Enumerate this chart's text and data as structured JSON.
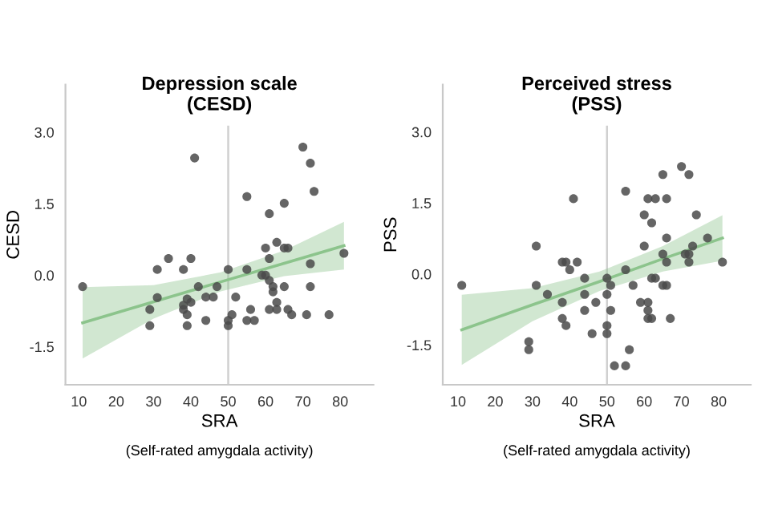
{
  "chart_data": [
    {
      "type": "scatter",
      "title": "Depression scale\n(CESD)",
      "xlabel": "SRA",
      "ylabel": "CESD",
      "annotations": [
        "(Self-rated amygdala activity)"
      ],
      "xlim": [
        6.4,
        88.9
      ],
      "ylim": [
        -2.3,
        4.0
      ],
      "xticks": [
        10,
        20,
        30,
        40,
        50,
        60,
        70,
        80
      ],
      "yticks": [
        {
          "value": -1.5,
          "label": "-1.5"
        },
        {
          "value": 0,
          "label": "0.0"
        },
        {
          "value": 1.5,
          "label": "1.5"
        },
        {
          "value": 3,
          "label": "3.0"
        }
      ],
      "grid": false,
      "legend": false,
      "marker": "circle",
      "ref_lines": [
        {
          "axis": "x",
          "value": 50,
          "color": "#d0d0d0"
        }
      ],
      "series": [
        {
          "type": "scatter",
          "color": "#4a4a4a",
          "x": [
            11,
            41,
            29,
            29,
            31,
            31,
            34,
            38,
            38,
            38,
            39,
            39,
            39,
            40,
            40,
            42,
            44,
            44,
            46,
            47,
            50,
            50,
            50,
            51,
            52,
            55,
            55,
            55,
            56,
            57,
            59,
            60,
            60,
            61,
            61,
            61,
            61,
            62,
            62,
            63,
            63,
            63,
            65,
            65,
            65,
            66,
            66,
            67,
            70,
            71,
            72,
            72,
            72,
            73,
            77,
            81
          ],
          "values": [
            -0.24,
            2.46,
            -0.72,
            -1.06,
            0.12,
            -0.47,
            0.35,
            0.12,
            -0.63,
            -0.72,
            -0.5,
            -0.83,
            -1.06,
            0.35,
            -0.57,
            -0.24,
            -0.46,
            -0.95,
            -0.46,
            -0.24,
            0.12,
            -0.95,
            -1.06,
            -0.83,
            -0.46,
            1.65,
            0.12,
            -0.95,
            -0.72,
            -0.95,
            0.0,
            0.57,
            0.0,
            1.29,
            0.35,
            -0.11,
            -0.72,
            -0.24,
            -0.35,
            -0.72,
            0.69,
            -0.57,
            1.51,
            0.57,
            -0.24,
            0.57,
            -0.72,
            -0.83,
            2.69,
            -0.83,
            2.35,
            0.24,
            -0.24,
            1.76,
            -0.83,
            0.46
          ]
        },
        {
          "type": "line",
          "color": "#8cc48c",
          "marker": "none",
          "line_style": "solid",
          "x": [
            11,
            30,
            48,
            65,
            81
          ],
          "values": [
            -1.0,
            -0.56,
            -0.14,
            0.25,
            0.62
          ],
          "lower": [
            -1.75,
            -0.91,
            -0.34,
            -0.02,
            0.12
          ],
          "upper": [
            -0.25,
            -0.21,
            0.06,
            0.52,
            1.12
          ]
        }
      ]
    },
    {
      "type": "scatter",
      "title": "Perceived stress\n(PSS)",
      "xlabel": "SRA",
      "ylabel": "PSS",
      "annotations": [
        "(Self-rated amygdala activity)"
      ],
      "xlim": [
        5.9,
        88.6
      ],
      "ylim": [
        -2.34,
        4.0
      ],
      "xticks": [
        10,
        20,
        30,
        40,
        50,
        60,
        70,
        80
      ],
      "yticks": [
        {
          "value": -1.5,
          "label": "-1.5"
        },
        {
          "value": 0,
          "label": "0.0"
        },
        {
          "value": 1.5,
          "label": "1.5"
        },
        {
          "value": 3,
          "label": "3.0"
        }
      ],
      "grid": false,
      "legend": false,
      "marker": "circle",
      "ref_lines": [
        {
          "axis": "x",
          "value": 50,
          "color": "#d0d0d0"
        }
      ],
      "series": [
        {
          "type": "scatter",
          "color": "#4a4a4a",
          "x": [
            11,
            29,
            29,
            31,
            31,
            34,
            38,
            38,
            38,
            39,
            39,
            40,
            41,
            42,
            44,
            44,
            44,
            46,
            47,
            50,
            50,
            50,
            50,
            51,
            52,
            51,
            55,
            55,
            55,
            56,
            57,
            59,
            60,
            60,
            61,
            61,
            61,
            61,
            62,
            62,
            62,
            63,
            63,
            65,
            65,
            65,
            66,
            66,
            66,
            66,
            67,
            70,
            71,
            72,
            72,
            72,
            73,
            74,
            77,
            81
          ],
          "values": [
            -0.24,
            -1.43,
            -1.6,
            0.59,
            -0.24,
            -0.43,
            0.25,
            -0.6,
            -0.94,
            0.25,
            -1.09,
            0.09,
            1.59,
            0.25,
            -0.09,
            -0.43,
            -0.77,
            -1.26,
            -0.6,
            -0.09,
            -0.43,
            -1.09,
            -1.26,
            -0.24,
            -1.94,
            -0.77,
            1.75,
            0.09,
            -1.94,
            -1.6,
            -0.24,
            -0.6,
            1.25,
            0.59,
            1.59,
            -0.6,
            -0.77,
            -0.94,
            1.08,
            -0.94,
            -0.09,
            -0.09,
            1.59,
            2.1,
            0.42,
            -0.24,
            1.59,
            0.76,
            0.25,
            -0.24,
            -0.94,
            2.27,
            0.42,
            2.1,
            0.42,
            0.25,
            0.59,
            1.25,
            0.76,
            0.25
          ]
        },
        {
          "type": "line",
          "color": "#8cc48c",
          "marker": "none",
          "line_style": "solid",
          "x": [
            11,
            30,
            48,
            65,
            81
          ],
          "values": [
            -1.18,
            -0.65,
            -0.16,
            0.32,
            0.76
          ],
          "lower": [
            -1.92,
            -1.0,
            -0.36,
            0.05,
            0.28
          ],
          "upper": [
            -0.44,
            -0.3,
            0.05,
            0.59,
            1.24
          ]
        }
      ]
    }
  ]
}
